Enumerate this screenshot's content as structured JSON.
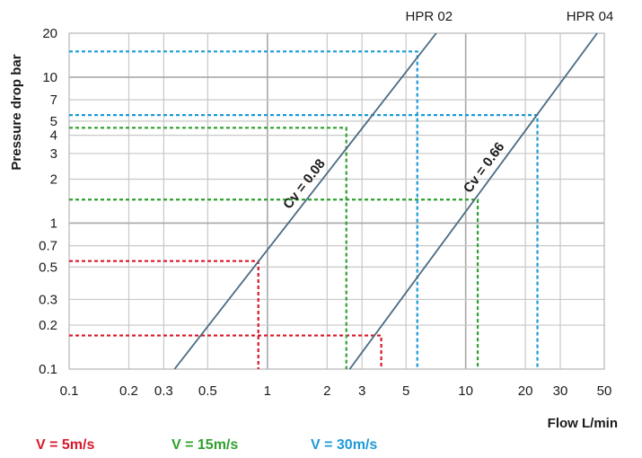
{
  "chart_data": {
    "type": "line",
    "xlabel": "Flow L/min",
    "ylabel": "Pressure drop bar",
    "x_scale": "log",
    "y_scale": "log",
    "xlim": [
      0.1,
      50
    ],
    "ylim": [
      0.1,
      20
    ],
    "x_ticks": [
      0.1,
      0.2,
      0.3,
      0.5,
      1,
      2,
      3,
      5,
      10,
      20,
      30,
      50
    ],
    "x_tick_labels": [
      "0.1",
      "0.2",
      "0.3",
      "0.5",
      "1",
      "2",
      "3",
      "5",
      "10",
      "20",
      "30",
      "50"
    ],
    "y_ticks": [
      0.1,
      0.2,
      0.3,
      0.5,
      0.7,
      1,
      2,
      3,
      4,
      5,
      7,
      10,
      20
    ],
    "y_tick_labels": [
      "0.1",
      "0.2",
      "0.3",
      "0.5",
      "0.7",
      "1",
      "2",
      "3",
      "4",
      "5",
      "7",
      "10",
      "20"
    ],
    "grid": true,
    "series": [
      {
        "name": "HPR 02",
        "annotation": "Cv = 0.08",
        "color": "#4a6a82",
        "points": [
          [
            0.34,
            0.1
          ],
          [
            7.1,
            20
          ]
        ]
      },
      {
        "name": "HPR 04",
        "annotation": "Cv = 0.66",
        "color": "#4a6a82",
        "points": [
          [
            2.6,
            0.1
          ],
          [
            46,
            20
          ]
        ]
      }
    ],
    "guides": [
      {
        "label": "V = 5m/s",
        "color": "#d7182a",
        "points": [
          {
            "x": 0.9,
            "y": 0.55
          },
          {
            "x": 3.75,
            "y": 0.17
          }
        ]
      },
      {
        "label": "V = 15m/s",
        "color": "#2ea02e",
        "points": [
          {
            "x": 2.5,
            "y": 4.5
          },
          {
            "x": 11.5,
            "y": 1.45
          }
        ]
      },
      {
        "label": "V = 30m/s",
        "color": "#1b9ad6",
        "points": [
          {
            "x": 5.7,
            "y": 15
          },
          {
            "x": 23,
            "y": 5.5
          }
        ]
      }
    ]
  }
}
